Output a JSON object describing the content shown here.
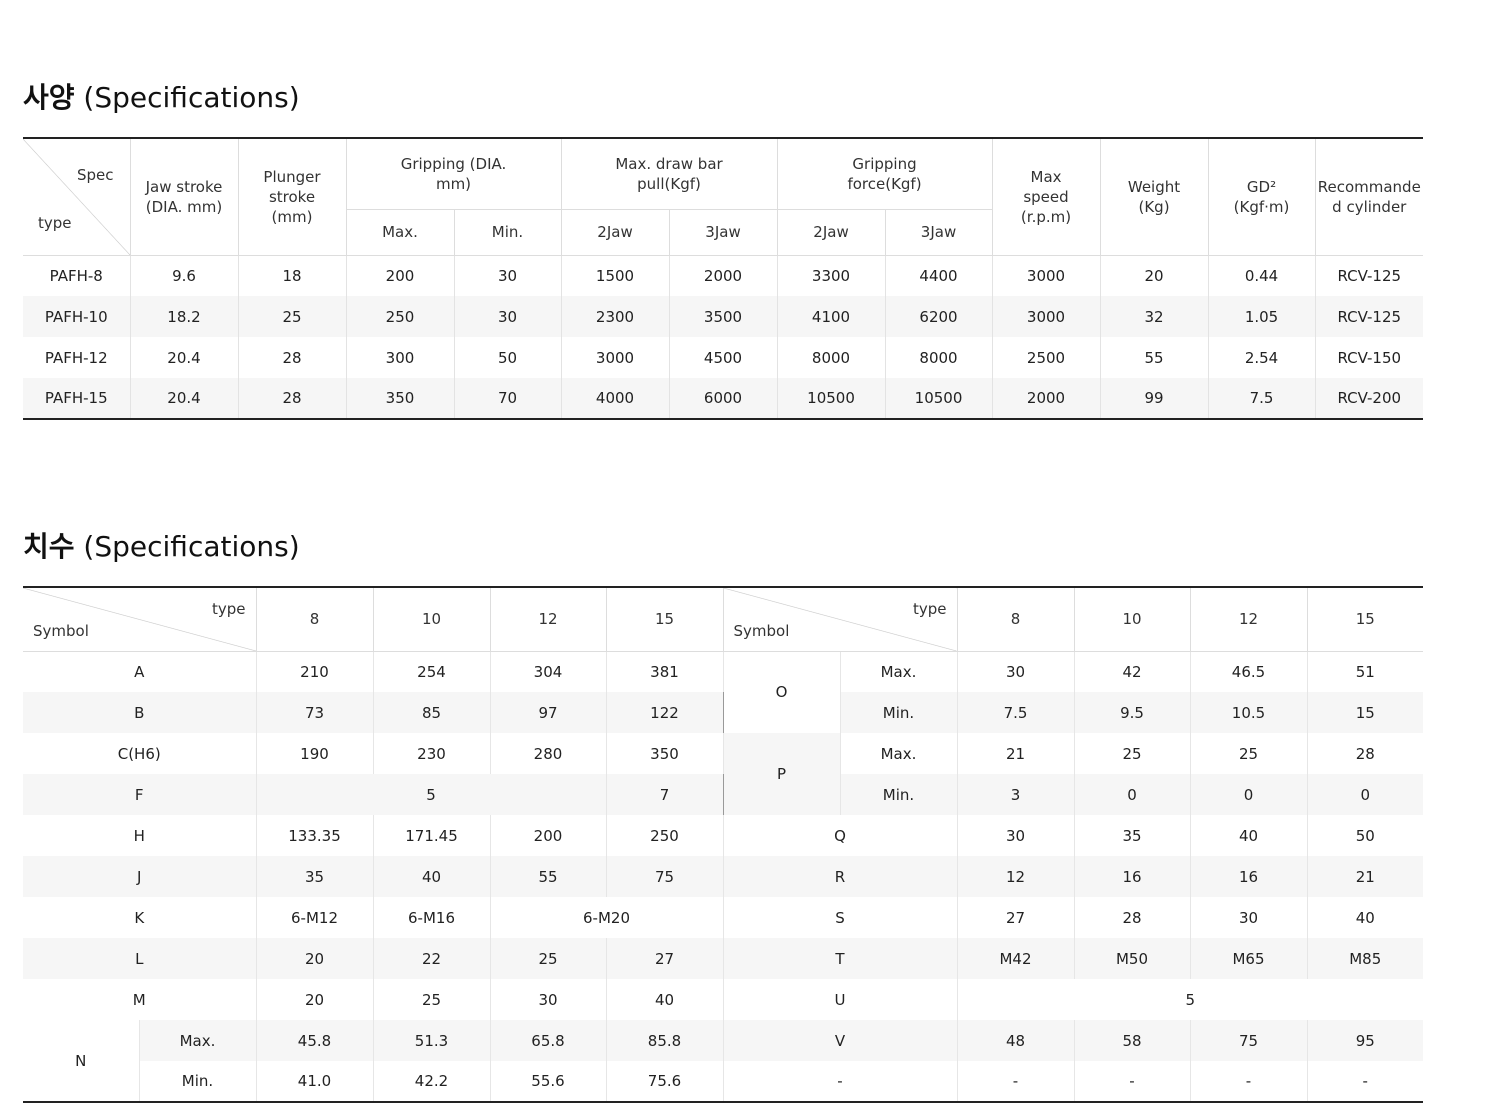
{
  "section1": {
    "title_bold": "사양",
    "title_rest": " (Specifications)"
  },
  "section2": {
    "title_bold": "치수",
    "title_rest": " (Specifications)"
  },
  "spec_table": {
    "corner_top": "Spec",
    "corner_bottom": "type",
    "headers": {
      "jaw_stroke": "Jaw stroke (DIA. mm)",
      "plunger_stroke": "Plunger stroke (mm)",
      "gripping": "Gripping (DIA. mm)",
      "draw_bar": "Max. draw bar pull(Kgf)",
      "gripping_force": "Gripping force(Kgf)",
      "max_speed": "Max speed (r.p.m)",
      "weight": "Weight (Kg)",
      "gd2": "GD² (Kgf·m)",
      "cylinder": "Recommanded cylinder",
      "max": "Max.",
      "min": "Min.",
      "jaw2": "2Jaw",
      "jaw3": "3Jaw"
    },
    "rows": [
      [
        "PAFH-8",
        "9.6",
        "18",
        "200",
        "30",
        "1500",
        "2000",
        "3300",
        "4400",
        "3000",
        "20",
        "0.44",
        "RCV-125"
      ],
      [
        "PAFH-10",
        "18.2",
        "25",
        "250",
        "30",
        "2300",
        "3500",
        "4100",
        "6200",
        "3000",
        "32",
        "1.05",
        "RCV-125"
      ],
      [
        "PAFH-12",
        "20.4",
        "28",
        "300",
        "50",
        "3000",
        "4500",
        "8000",
        "8000",
        "2500",
        "55",
        "2.54",
        "RCV-150"
      ],
      [
        "PAFH-15",
        "20.4",
        "28",
        "350",
        "70",
        "4000",
        "6000",
        "10500",
        "10500",
        "2000",
        "99",
        "7.5",
        "RCV-200"
      ]
    ]
  },
  "dim_table": {
    "corner_top": "type",
    "corner_bottom": "Symbol",
    "types": [
      "8",
      "10",
      "12",
      "15"
    ],
    "max_label": "Max.",
    "min_label": "Min.",
    "left": {
      "A": [
        "210",
        "254",
        "304",
        "381"
      ],
      "B": [
        "73",
        "85",
        "97",
        "122"
      ],
      "C": {
        "label": "C(H6)",
        "values": [
          "190",
          "230",
          "280",
          "350"
        ]
      },
      "F": {
        "span_value": "5",
        "last": "7"
      },
      "H": [
        "133.35",
        "171.45",
        "200",
        "250"
      ],
      "J": [
        "35",
        "40",
        "55",
        "75"
      ],
      "K": {
        "v8": "6-M12",
        "v10": "6-M16",
        "span_value": "6-M20"
      },
      "L": [
        "20",
        "22",
        "25",
        "27"
      ],
      "M": [
        "20",
        "25",
        "30",
        "40"
      ],
      "N": {
        "max": [
          "45.8",
          "51.3",
          "65.8",
          "85.8"
        ],
        "min": [
          "41.0",
          "42.2",
          "55.6",
          "75.6"
        ]
      }
    },
    "right": {
      "O": {
        "max": [
          "30",
          "42",
          "46.5",
          "51"
        ],
        "min": [
          "7.5",
          "9.5",
          "10.5",
          "15"
        ]
      },
      "P": {
        "max": [
          "21",
          "25",
          "25",
          "28"
        ],
        "min": [
          "3",
          "0",
          "0",
          "0"
        ]
      },
      "Q": [
        "30",
        "35",
        "40",
        "50"
      ],
      "R": [
        "12",
        "16",
        "16",
        "21"
      ],
      "S": [
        "27",
        "28",
        "30",
        "40"
      ],
      "T": [
        "M42",
        "M50",
        "M65",
        "M85"
      ],
      "U": {
        "span_value": "5"
      },
      "V": [
        "48",
        "58",
        "75",
        "95"
      ],
      "dash": {
        "label": "-",
        "values": [
          "-",
          "-",
          "-",
          "-"
        ]
      }
    }
  }
}
